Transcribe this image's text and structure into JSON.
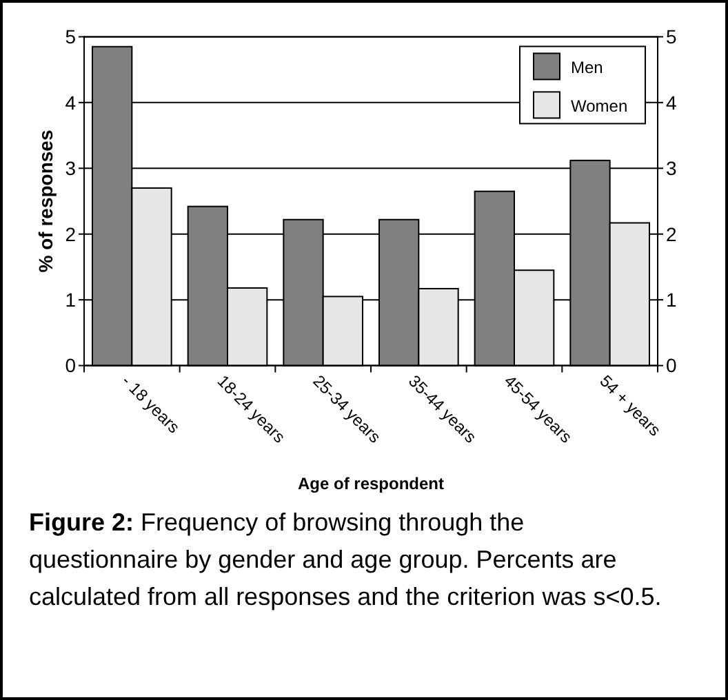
{
  "chart_data": {
    "type": "bar",
    "xlabel": "Age of respondent",
    "ylabel": "% of responses",
    "categories": [
      "- 18 years",
      "18-24 years",
      "25-34 years",
      "35-44 years",
      "45-54 years",
      "54 + years"
    ],
    "series": [
      {
        "name": "Men",
        "color": "#808080",
        "values": [
          4.85,
          2.42,
          2.22,
          2.22,
          2.65,
          3.12
        ]
      },
      {
        "name": "Women",
        "color": "#e6e6e6",
        "values": [
          2.7,
          1.18,
          1.05,
          1.17,
          1.45,
          2.17
        ]
      }
    ],
    "ylim": [
      0,
      5
    ],
    "yticks": [
      0,
      1,
      2,
      3,
      4,
      5
    ],
    "y2lim": [
      0,
      5
    ],
    "y2ticks": [
      0,
      1,
      2,
      3,
      4,
      5
    ],
    "grid": "y",
    "legend": "top right",
    "annotations": [
      "Figure 2:",
      "Frequency of browsing through the questionnaire by gender and age group. Percents are calculated from all responses and the criterion was s<0.5."
    ]
  }
}
